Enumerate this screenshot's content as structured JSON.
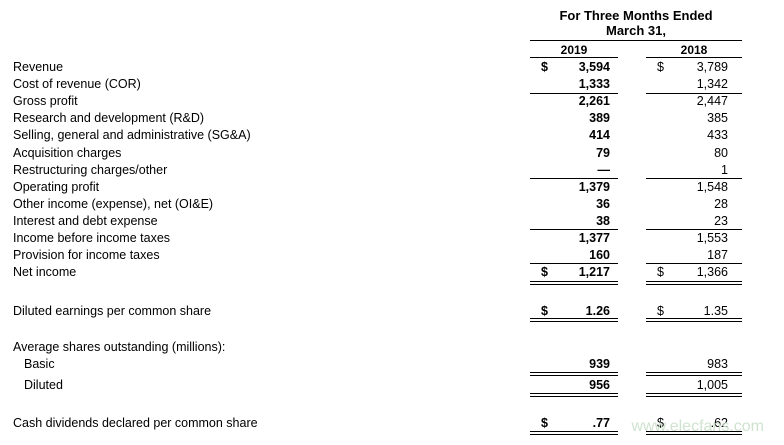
{
  "header": {
    "period_line1": "For Three Months Ended",
    "period_line2": "March 31,",
    "year_2019": "2019",
    "year_2018": "2018"
  },
  "rows": [
    {
      "label": "Revenue",
      "d19": "$",
      "v19": "3,594",
      "d18": "$",
      "v18": "3,789"
    },
    {
      "label": "Cost of revenue (COR)",
      "v19": "1,333",
      "v18": "1,342"
    },
    {
      "label": "Gross profit",
      "v19": "2,261",
      "v18": "2,447"
    },
    {
      "label": "Research and development (R&D)",
      "v19": "389",
      "v18": "385"
    },
    {
      "label": "Selling, general and administrative (SG&A)",
      "v19": "414",
      "v18": "433"
    },
    {
      "label": "Acquisition charges",
      "v19": "79",
      "v18": "80"
    },
    {
      "label": "Restructuring charges/other",
      "v19": "—",
      "v18": "1"
    },
    {
      "label": "Operating profit",
      "v19": "1,379",
      "v18": "1,548"
    },
    {
      "label": "Other income (expense), net (OI&E)",
      "v19": "36",
      "v18": "28"
    },
    {
      "label": "Interest and debt expense",
      "v19": "38",
      "v18": "23"
    },
    {
      "label": "Income before income taxes",
      "v19": "1,377",
      "v18": "1,553"
    },
    {
      "label": "Provision for income taxes",
      "v19": "160",
      "v18": "187"
    },
    {
      "label": "Net income",
      "d19": "$",
      "v19": "1,217",
      "d18": "$",
      "v18": "1,366"
    }
  ],
  "eps": {
    "label": "Diluted earnings per common share",
    "d19": "$",
    "v19": "1.26",
    "d18": "$",
    "v18": "1.35"
  },
  "shares": {
    "heading": "Average shares outstanding (millions):",
    "basic_label": "Basic",
    "basic_v19": "939",
    "basic_v18": "983",
    "diluted_label": "Diluted",
    "diluted_v19": "956",
    "diluted_v18": "1,005"
  },
  "dividends": {
    "label": "Cash dividends declared per common share",
    "d19": "$",
    "v19": ".77",
    "d18": "$",
    "v18": ".62"
  },
  "watermark": "www.elecfans.com"
}
